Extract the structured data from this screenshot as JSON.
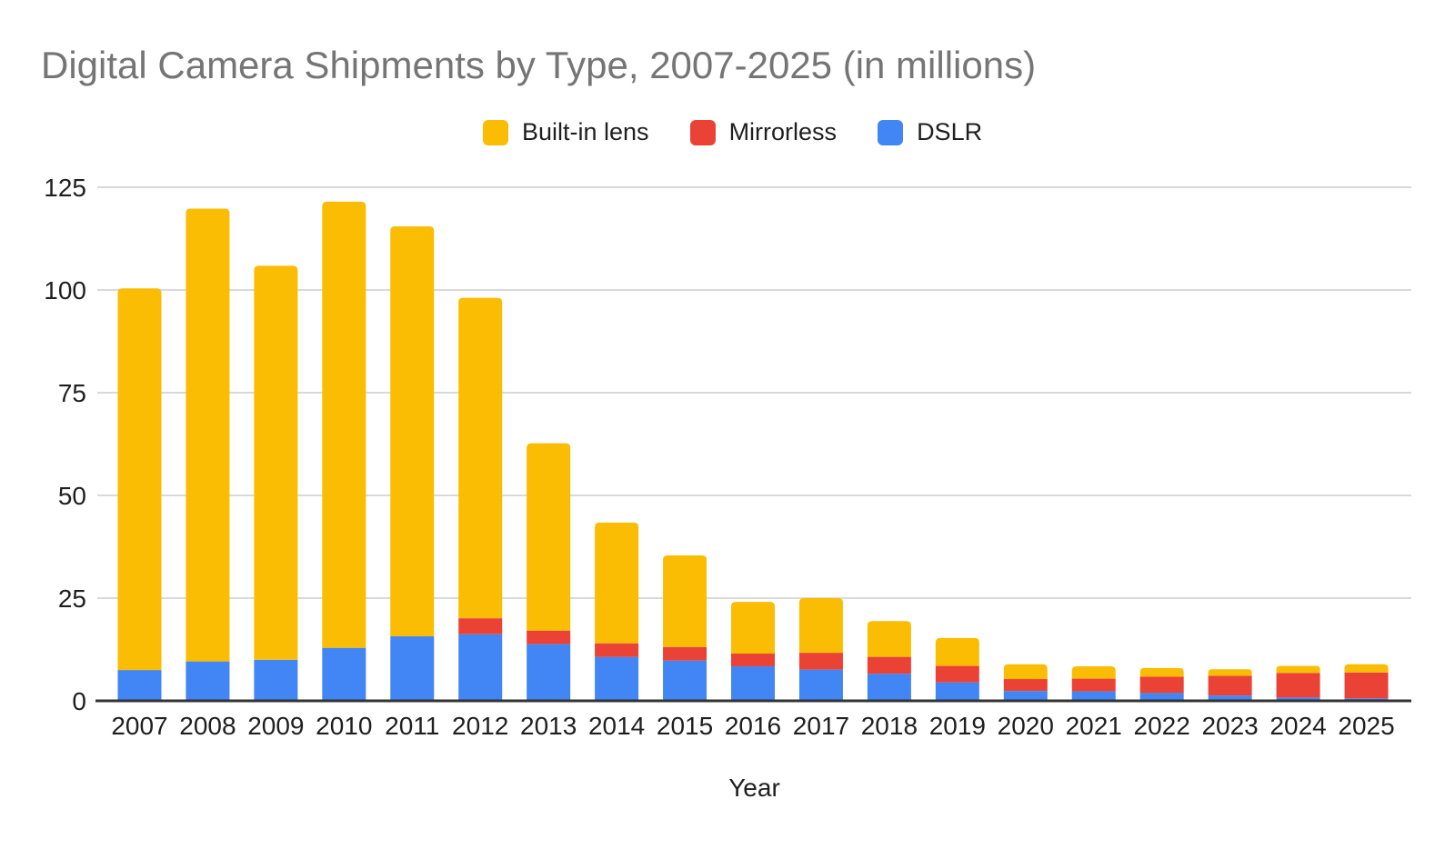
{
  "title": "Digital Camera Shipments by Type, 2007-2025 (in millions)",
  "chart_data": {
    "type": "bar",
    "stacked": true,
    "title": "Digital Camera Shipments by Type, 2007-2025 (in millions)",
    "xlabel": "Year",
    "ylabel": "",
    "legend_position": "top",
    "grid": true,
    "ylim": [
      0,
      125
    ],
    "yticks": [
      0,
      25,
      50,
      75,
      100,
      125
    ],
    "categories": [
      "2007",
      "2008",
      "2009",
      "2010",
      "2011",
      "2012",
      "2013",
      "2014",
      "2015",
      "2016",
      "2017",
      "2018",
      "2019",
      "2020",
      "2021",
      "2022",
      "2023",
      "2024",
      "2025"
    ],
    "series": [
      {
        "name": "DSLR",
        "color": "#4285F4",
        "values": [
          7.5,
          9.6,
          10.0,
          12.9,
          15.7,
          16.2,
          13.8,
          10.7,
          9.8,
          8.4,
          7.6,
          6.6,
          4.5,
          2.4,
          2.3,
          1.9,
          1.3,
          0.8,
          0.6
        ]
      },
      {
        "name": "Mirrorless",
        "color": "#EA4335",
        "values": [
          0,
          0,
          0,
          0,
          0,
          3.9,
          3.3,
          3.3,
          3.3,
          3.1,
          4.1,
          4.1,
          4.0,
          2.9,
          3.1,
          4.0,
          4.8,
          6.0,
          6.3
        ]
      },
      {
        "name": "Built-in lens",
        "color": "#FBBC04",
        "values": [
          92.9,
          110.2,
          95.9,
          108.6,
          99.8,
          78.0,
          45.6,
          29.4,
          22.3,
          12.6,
          13.3,
          8.7,
          6.8,
          3.6,
          3.0,
          2.1,
          1.6,
          1.7,
          2.0
        ]
      }
    ],
    "totals": [
      100.4,
      119.8,
      105.9,
      121.5,
      115.5,
      98.1,
      62.7,
      43.4,
      35.4,
      24.1,
      25.0,
      19.4,
      15.3,
      8.9,
      8.4,
      8.0,
      7.7,
      8.5,
      8.9
    ]
  },
  "styles": {
    "title_color": "#757575",
    "text_color": "#1f1f1f",
    "grid_color": "#d9d9d9",
    "axis_color": "#333333",
    "background": "#ffffff"
  }
}
